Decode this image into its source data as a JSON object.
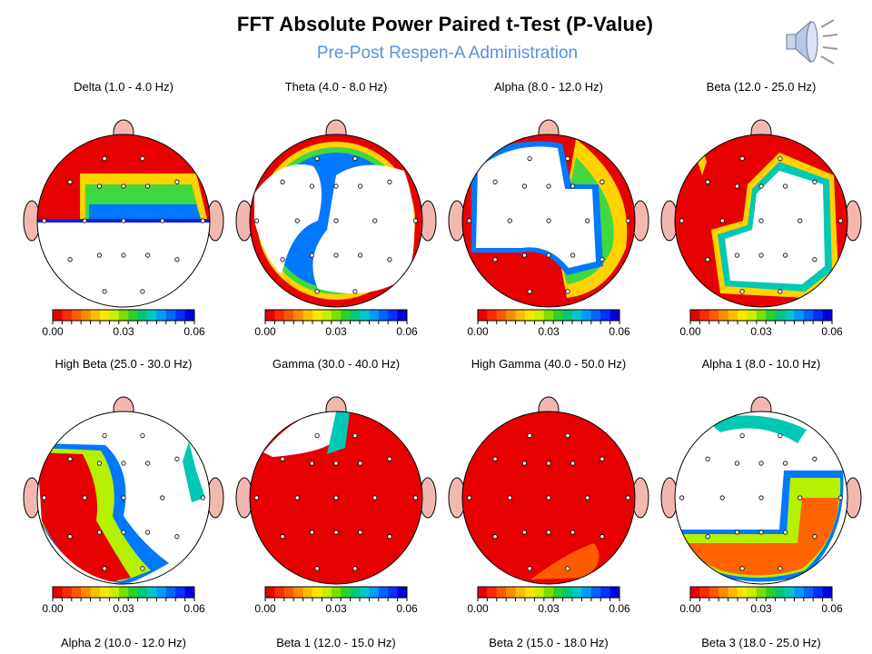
{
  "title": "FFT Absolute Power Paired t-Test  (P-Value)",
  "subtitle": "Pre-Post Respen-A Administration",
  "speaker_icon": "speaker-icon",
  "colorbar": {
    "ticks": [
      "0.00",
      "0.03",
      "0.06"
    ],
    "colors": [
      "#e60000",
      "#ff2b00",
      "#ff5a00",
      "#ff8c00",
      "#ffbf00",
      "#ffe600",
      "#c8f000",
      "#7be000",
      "#2bd12b",
      "#00c87a",
      "#00c8c8",
      "#009bff",
      "#0064ff",
      "#0032ff",
      "#0000e0"
    ]
  },
  "panels": [
    {
      "label": "Delta (1.0 - 4.0 Hz)"
    },
    {
      "label": "Theta (4.0 - 8.0 Hz)"
    },
    {
      "label": "Alpha (8.0 - 12.0 Hz)"
    },
    {
      "label": "Beta (12.0 - 25.0 Hz)"
    },
    {
      "label": "High Beta (25.0 - 30.0 Hz)"
    },
    {
      "label": "Gamma (30.0 - 40.0 Hz)"
    },
    {
      "label": "High Gamma (40.0 - 50.0 Hz)"
    },
    {
      "label": "Alpha 1 (8.0 - 10.0 Hz)"
    }
  ],
  "bottom_labels": [
    "Alpha 2 (10.0 - 12.0 Hz)",
    "Beta 1 (12.0 - 15.0 Hz)",
    "Beta 2 (15.0 - 18.0 Hz)",
    "Beta 3 (18.0 - 25.0 Hz)"
  ]
}
